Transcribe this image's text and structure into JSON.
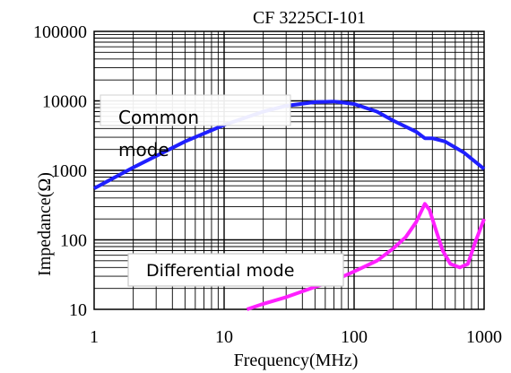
{
  "chart_data": {
    "type": "line",
    "title": "CF 3225CI-101",
    "xlabel": "Frequency(MHz)",
    "ylabel": "Impedance(Ω)",
    "xscale": "log",
    "yscale": "log",
    "xlim": [
      1,
      1000
    ],
    "ylim": [
      10,
      100000
    ],
    "x_ticks": [
      "1",
      "10",
      "100",
      "1000"
    ],
    "y_ticks": [
      "10",
      "100",
      "1000",
      "10000",
      "100000"
    ],
    "grid": true,
    "series": [
      {
        "name": "Common mode",
        "color": "#1f1fff",
        "points": [
          [
            1,
            550
          ],
          [
            2,
            1100
          ],
          [
            5,
            2600
          ],
          [
            10,
            4500
          ],
          [
            20,
            7000
          ],
          [
            30,
            8500
          ],
          [
            50,
            9600
          ],
          [
            70,
            9800
          ],
          [
            100,
            9000
          ],
          [
            150,
            7000
          ],
          [
            200,
            5200
          ],
          [
            300,
            3600
          ],
          [
            350,
            2900
          ],
          [
            400,
            2900
          ],
          [
            500,
            2600
          ],
          [
            700,
            1800
          ],
          [
            1000,
            1050
          ]
        ]
      },
      {
        "name": "Differential mode",
        "color": "#ff1fff",
        "points": [
          [
            15,
            10
          ],
          [
            20,
            12
          ],
          [
            30,
            15
          ],
          [
            50,
            21
          ],
          [
            70,
            26
          ],
          [
            100,
            35
          ],
          [
            150,
            50
          ],
          [
            200,
            75
          ],
          [
            250,
            110
          ],
          [
            300,
            180
          ],
          [
            350,
            330
          ],
          [
            380,
            270
          ],
          [
            420,
            150
          ],
          [
            480,
            70
          ],
          [
            550,
            45
          ],
          [
            650,
            40
          ],
          [
            750,
            45
          ],
          [
            850,
            90
          ],
          [
            1000,
            200
          ]
        ]
      }
    ]
  }
}
